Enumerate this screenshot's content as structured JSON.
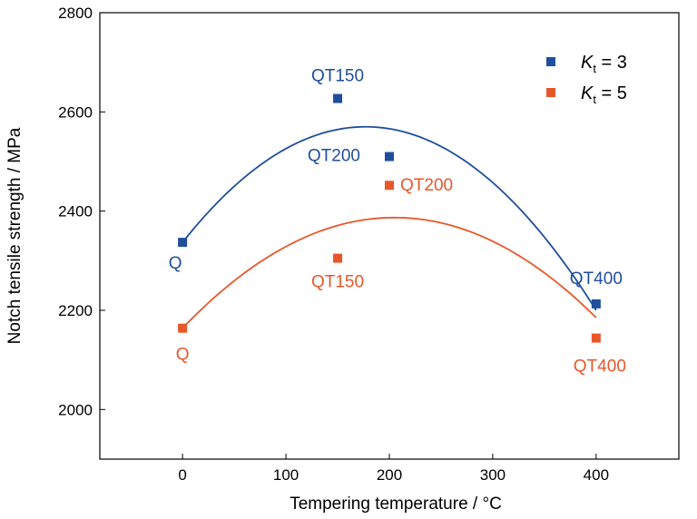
{
  "chart_data": {
    "type": "scatter",
    "xlabel": "Tempering temperature / °C",
    "ylabel": "Notch tensile strength / MPa",
    "xlim": [
      -80,
      480
    ],
    "ylim": [
      1900,
      2800
    ],
    "xticks": [
      0,
      100,
      200,
      300,
      400
    ],
    "yticks": [
      2000,
      2200,
      2400,
      2600,
      2800
    ],
    "grid": false,
    "legend_position": "top-right",
    "series": [
      {
        "name": "Kt = 3",
        "legend_main": "K",
        "legend_sub": "t",
        "legend_rest": " = 3",
        "color": "#1f4e9c",
        "points": [
          {
            "x": 0,
            "y": 2337,
            "label": "Q"
          },
          {
            "x": 150,
            "y": 2627,
            "label": "QT150"
          },
          {
            "x": 200,
            "y": 2510,
            "label": "QT200"
          },
          {
            "x": 400,
            "y": 2213,
            "label": "QT400"
          }
        ],
        "fit": {
          "type": "quadratic",
          "vertex_x": 177,
          "vertex_y": 2570,
          "x_range": [
            0,
            400
          ]
        }
      },
      {
        "name": "Kt = 5",
        "legend_main": "K",
        "legend_sub": "t",
        "legend_rest": " = 5",
        "color": "#e8572a",
        "points": [
          {
            "x": 0,
            "y": 2164,
            "label": "Q"
          },
          {
            "x": 150,
            "y": 2305,
            "label": "QT150"
          },
          {
            "x": 200,
            "y": 2452,
            "label": "QT200"
          },
          {
            "x": 400,
            "y": 2144,
            "label": "QT400"
          }
        ],
        "fit": {
          "type": "quadratic",
          "vertex_x": 205,
          "vertex_y": 2387,
          "x_range": [
            0,
            400
          ]
        }
      }
    ]
  }
}
